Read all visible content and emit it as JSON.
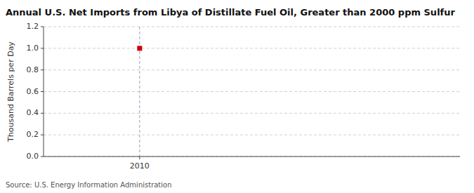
{
  "chart_data": {
    "type": "scatter",
    "title": "Annual U.S. Net Imports from Libya of Distillate Fuel Oil, Greater than 2000 ppm Sulfur",
    "ylabel": "Thousand Barrels per Day",
    "source": "Source: U.S. Energy Information Administration",
    "x": [
      2010
    ],
    "values": [
      1.0
    ],
    "color": "#cc0000",
    "marker": "square",
    "xlim": [
      2009.4,
      2012.0
    ],
    "xticks": [
      2010
    ],
    "ylim": [
      0.0,
      1.2
    ],
    "yticks": [
      {
        "value": 0.0,
        "label": "0.0"
      },
      0.2,
      0.4,
      0.6,
      0.8,
      {
        "value": 1.0,
        "label": "1.0"
      },
      1.2
    ],
    "vlines": [
      2010
    ],
    "grid": true
  }
}
